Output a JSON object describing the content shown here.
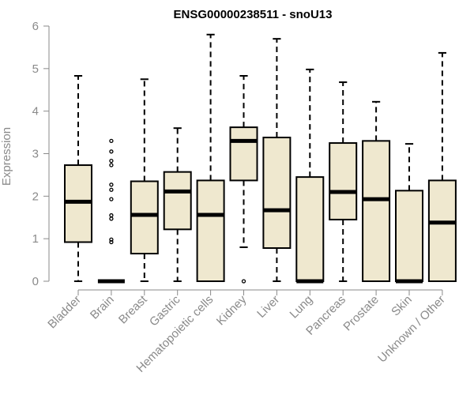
{
  "chart_data": {
    "type": "boxplot",
    "title": "ENSG00000238511 - snoU13",
    "ylabel": "Expression",
    "xlabel": "",
    "ylim": [
      0,
      6
    ],
    "yticks": [
      0,
      1,
      2,
      3,
      4,
      5,
      6
    ],
    "grid": false,
    "categories": [
      "Bladder",
      "Brain",
      "Breast",
      "Gastric",
      "Hematopoietic cells",
      "Kidney",
      "Liver",
      "Lung",
      "Pancreas",
      "Prostate",
      "Skin",
      "Unknown / Other"
    ],
    "boxes": [
      {
        "whisker_low": 0,
        "q1": 0.92,
        "median": 1.87,
        "q3": 2.73,
        "whisker_high": 4.83,
        "outliers": []
      },
      {
        "whisker_low": 0,
        "q1": 0,
        "median": 0,
        "q3": 0,
        "whisker_high": 0,
        "outliers": [
          0.92,
          0.98,
          1.47,
          1.55,
          1.93,
          2.15,
          2.27,
          2.73,
          2.83,
          3.05,
          3.3
        ]
      },
      {
        "whisker_low": 0,
        "q1": 0.65,
        "median": 1.56,
        "q3": 2.35,
        "whisker_high": 4.75,
        "outliers": []
      },
      {
        "whisker_low": 0,
        "q1": 1.22,
        "median": 2.11,
        "q3": 2.57,
        "whisker_high": 3.6,
        "outliers": []
      },
      {
        "whisker_low": 0,
        "q1": 0,
        "median": 1.56,
        "q3": 2.37,
        "whisker_high": 5.8,
        "outliers": []
      },
      {
        "whisker_low": 0.8,
        "q1": 2.37,
        "median": 3.3,
        "q3": 3.62,
        "whisker_high": 4.83,
        "outliers": [
          0
        ]
      },
      {
        "whisker_low": 0,
        "q1": 0.78,
        "median": 1.67,
        "q3": 3.38,
        "whisker_high": 5.7,
        "outliers": []
      },
      {
        "whisker_low": 0,
        "q1": 0,
        "median": 0,
        "q3": 2.45,
        "whisker_high": 4.98,
        "outliers": []
      },
      {
        "whisker_low": 0,
        "q1": 1.45,
        "median": 2.1,
        "q3": 3.25,
        "whisker_high": 4.68,
        "outliers": []
      },
      {
        "whisker_low": 0,
        "q1": 0,
        "median": 1.93,
        "q3": 3.3,
        "whisker_high": 4.22,
        "outliers": []
      },
      {
        "whisker_low": 0,
        "q1": 0,
        "median": 0,
        "q3": 2.13,
        "whisker_high": 3.23,
        "outliers": []
      },
      {
        "whisker_low": 0,
        "q1": 0,
        "median": 1.38,
        "q3": 2.37,
        "whisker_high": 5.37,
        "outliers": []
      }
    ],
    "colors": {
      "box_fill": "#efe8cf",
      "box_stroke": "#000000",
      "axis": "#8a8a8a"
    }
  }
}
